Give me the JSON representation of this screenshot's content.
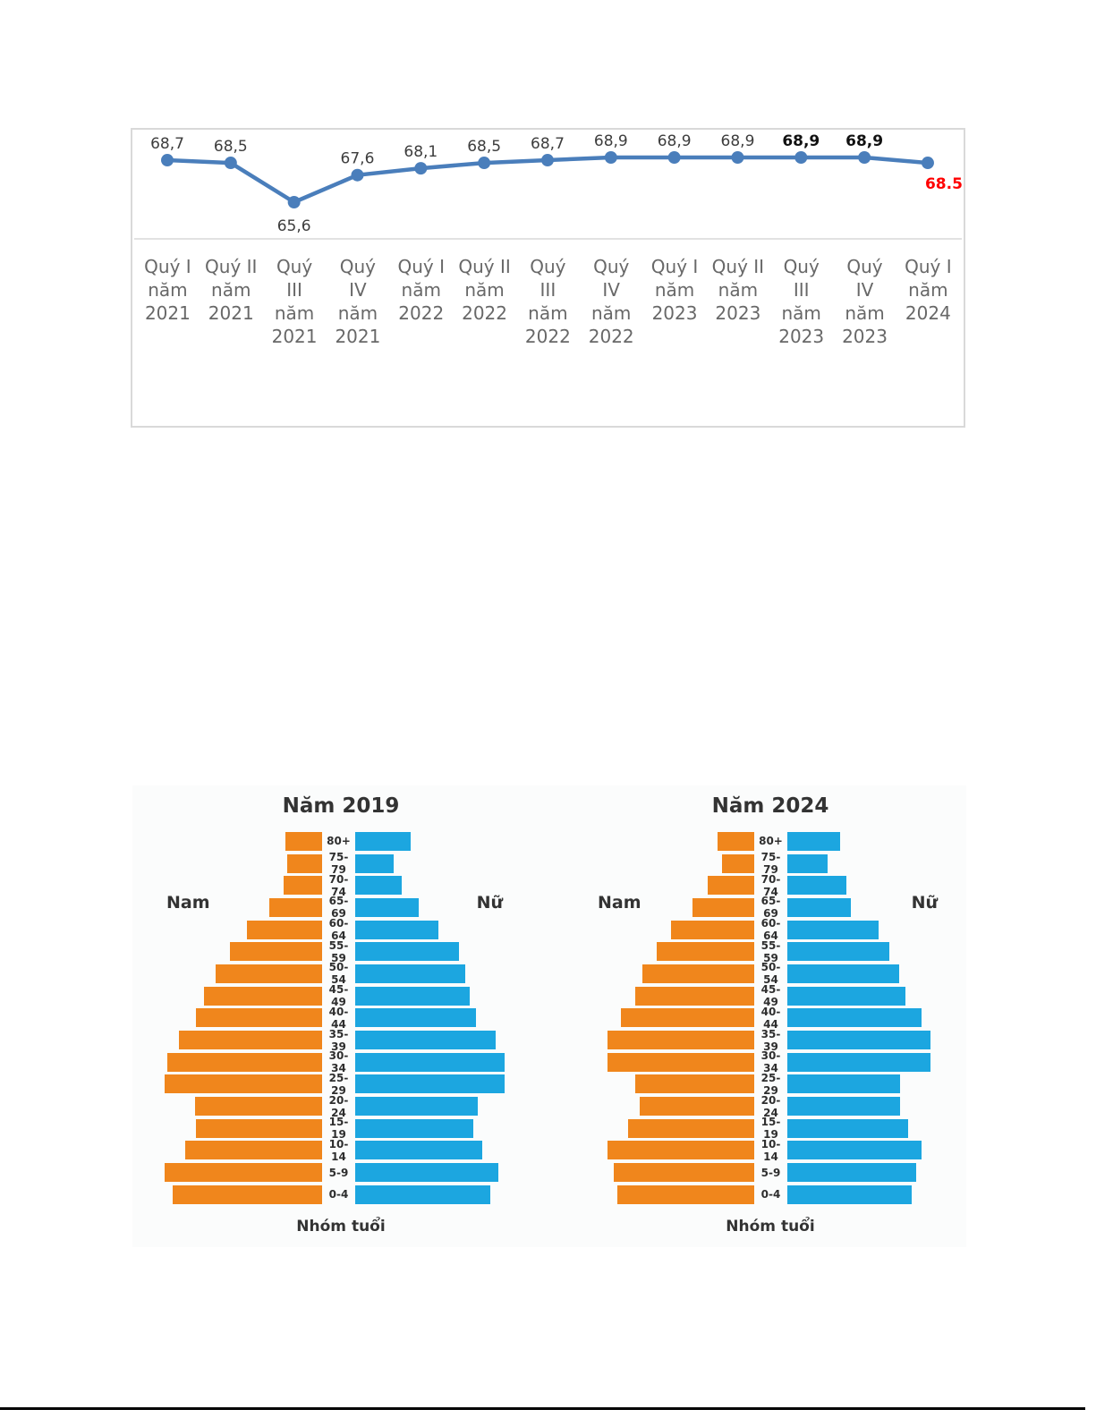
{
  "figure": {
    "bottom_rule_color": "#000000"
  },
  "chart_data": [
    {
      "type": "line",
      "title": "",
      "x": [
        "Quý I năm 2021",
        "Quý II năm 2021",
        "Quý III năm 2021",
        "Quý IV năm 2021",
        "Quý I năm 2022",
        "Quý II năm 2022",
        "Quý III năm 2022",
        "Quý IV năm 2022",
        "Quý I năm 2023",
        "Quý II năm 2023",
        "Quý III năm 2023",
        "Quý IV năm 2023",
        "Quý I năm 2024"
      ],
      "x_tick_lines": [
        [
          "Quý I",
          "năm",
          "2021"
        ],
        [
          "Quý II",
          "năm",
          "2021"
        ],
        [
          "Quý",
          "III",
          "năm",
          "2021"
        ],
        [
          "Quý",
          "IV",
          "năm",
          "2021"
        ],
        [
          "Quý I",
          "năm",
          "2022"
        ],
        [
          "Quý II",
          "năm",
          "2022"
        ],
        [
          "Quý",
          "III",
          "năm",
          "2022"
        ],
        [
          "Quý",
          "IV",
          "năm",
          "2022"
        ],
        [
          "Quý I",
          "năm",
          "2023"
        ],
        [
          "Quý II",
          "năm",
          "2023"
        ],
        [
          "Quý",
          "III",
          "năm",
          "2023"
        ],
        [
          "Quý",
          "IV",
          "năm",
          "2023"
        ],
        [
          "Quý I",
          "năm",
          "2024"
        ]
      ],
      "values": [
        68.7,
        68.5,
        65.6,
        67.6,
        68.1,
        68.5,
        68.7,
        68.9,
        68.9,
        68.9,
        68.9,
        68.9,
        68.5
      ],
      "point_labels": [
        "68,7",
        "68,5",
        "65,6",
        "67,6",
        "68,1",
        "68,5",
        "68,7",
        "68,9",
        "68,9",
        "68,9",
        "68,9",
        "68,9",
        "68.5"
      ],
      "bold_label_indexes": [
        10,
        11
      ],
      "below_label_indexes": [
        2
      ],
      "highlight_label_index": 12,
      "highlight_color": "#ff0000",
      "line_color": "#4a7ebb",
      "label_color": "#3d3d3d",
      "bold_label_color": "#111111",
      "grid": false,
      "baseline": true,
      "ylim": [
        65.0,
        69.5
      ],
      "legend": null
    },
    {
      "type": "bar",
      "subtype": "population-pyramid",
      "title": "Năm 2019",
      "male_label": "Nam",
      "female_label": "Nữ",
      "xlabel": "Nhóm tuổi",
      "categories": [
        "80+",
        "75-79",
        "70-74",
        "65-69",
        "60-64",
        "55-59",
        "50-54",
        "45-49",
        "40-44",
        "35-39",
        "30-34",
        "25-29",
        "20-24",
        "15-19",
        "10-14",
        "5-9",
        "0-4"
      ],
      "value_scale": "relative bar length, percent of longest bar (no numeric axis shown)",
      "series": [
        {
          "name": "Nam",
          "color": "#f0861c",
          "values": [
            23,
            22,
            24,
            33,
            47,
            58,
            67,
            74,
            79,
            90,
            97,
            99,
            80,
            79,
            86,
            99,
            94
          ]
        },
        {
          "name": "Nữ",
          "color": "#1ca6e0",
          "values": [
            35,
            24,
            29,
            40,
            52,
            65,
            69,
            72,
            76,
            88,
            94,
            94,
            77,
            74,
            80,
            90,
            85
          ]
        }
      ]
    },
    {
      "type": "bar",
      "subtype": "population-pyramid",
      "title": "Năm 2024",
      "male_label": "Nam",
      "female_label": "Nữ",
      "xlabel": "Nhóm tuổi",
      "categories": [
        "80+",
        "75-79",
        "70-74",
        "65-69",
        "60-64",
        "55-59",
        "50-54",
        "45-49",
        "40-44",
        "35-39",
        "30-34",
        "25-29",
        "20-24",
        "15-19",
        "10-14",
        "5-9",
        "0-4"
      ],
      "value_scale": "relative bar length, percent of longest bar (no numeric axis shown)",
      "series": [
        {
          "name": "Nam",
          "color": "#f0861c",
          "values": [
            23,
            20,
            29,
            39,
            52,
            61,
            70,
            75,
            84,
            92,
            92,
            75,
            72,
            79,
            92,
            88,
            86
          ]
        },
        {
          "name": "Nữ",
          "color": "#1ca6e0",
          "values": [
            33,
            25,
            37,
            40,
            57,
            64,
            70,
            74,
            84,
            90,
            90,
            71,
            71,
            76,
            84,
            81,
            78
          ]
        }
      ]
    }
  ]
}
